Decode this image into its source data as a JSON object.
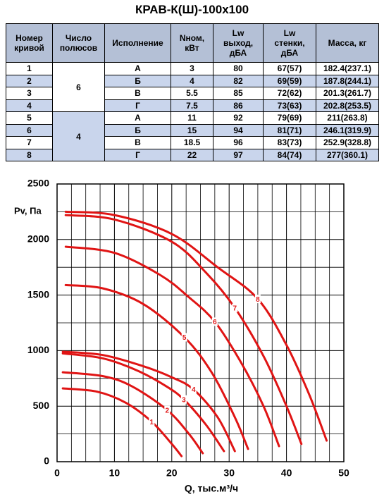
{
  "header": {
    "title": "КРАВ-К(Ш)-100х100"
  },
  "table": {
    "columns": [
      "Номер\nкривой",
      "Число\nполюсов",
      "Исполнение",
      "Nном,\nкВт",
      "Lw\nвыход,\nдБА",
      "Lw\nстенки,\nдБА",
      "Масса, кг"
    ],
    "poles": [
      "6",
      "4"
    ],
    "rows": [
      [
        "1",
        "А",
        "3",
        "80",
        "67(57)",
        "182.4(237.1)"
      ],
      [
        "2",
        "Б",
        "4",
        "82",
        "69(59)",
        "187.8(244.1)"
      ],
      [
        "3",
        "В",
        "5.5",
        "85",
        "72(62)",
        "201.3(261.7)"
      ],
      [
        "4",
        "Г",
        "7.5",
        "86",
        "73(63)",
        "202.8(253.5)"
      ],
      [
        "5",
        "А",
        "11",
        "92",
        "79(69)",
        "211(263.8)"
      ],
      [
        "6",
        "Б",
        "15",
        "94",
        "81(71)",
        "246.1(319.9)"
      ],
      [
        "7",
        "В",
        "18.5",
        "96",
        "83(73)",
        "252.9(328.8)"
      ],
      [
        "8",
        "Г",
        "22",
        "97",
        "84(74)",
        "277(360.1)"
      ]
    ]
  },
  "chart_data": {
    "type": "line",
    "xlabel": "Q, тыс.м³/ч",
    "ylabel": "Pv, Па",
    "xlim": [
      0,
      50
    ],
    "xticks": [
      0,
      10,
      20,
      30,
      40,
      50
    ],
    "ylim": [
      0,
      2500
    ],
    "yticks": [
      0,
      500,
      1000,
      1500,
      2000,
      2500
    ],
    "grid": true,
    "color": "#e01414",
    "series": [
      {
        "name": "1",
        "x": [
          1,
          7,
          12,
          16.5,
          20,
          21.7
        ],
        "values": [
          660,
          630,
          530,
          360,
          160,
          50
        ]
      },
      {
        "name": "2",
        "x": [
          1,
          8,
          13,
          19.2,
          23,
          25.4
        ],
        "values": [
          805,
          770,
          680,
          465,
          250,
          76
        ]
      },
      {
        "name": "3",
        "x": [
          1,
          8,
          14,
          19,
          22.1,
          26,
          29.1
        ],
        "values": [
          975,
          930,
          820,
          680,
          560,
          330,
          95
        ]
      },
      {
        "name": "4",
        "x": [
          1,
          8,
          15,
          20,
          23.8,
          28,
          31
        ],
        "values": [
          990,
          960,
          860,
          760,
          650,
          400,
          95
        ]
      },
      {
        "name": "5",
        "x": [
          1.5,
          8,
          15,
          22.2,
          27,
          31,
          33.3
        ],
        "values": [
          1590,
          1560,
          1420,
          1120,
          800,
          400,
          115
        ]
      },
      {
        "name": "6",
        "x": [
          1.5,
          10,
          18,
          23,
          27.5,
          32,
          36,
          38.7
        ],
        "values": [
          1935,
          1880,
          1680,
          1480,
          1260,
          900,
          500,
          140
        ]
      },
      {
        "name": "7",
        "x": [
          1.5,
          10,
          20,
          26,
          31,
          36,
          40,
          42.6
        ],
        "values": [
          2220,
          2180,
          1980,
          1700,
          1385,
          950,
          500,
          160
        ]
      },
      {
        "name": "8",
        "x": [
          1.5,
          10,
          20,
          28,
          35,
          40,
          44,
          47
        ],
        "values": [
          2250,
          2220,
          2050,
          1750,
          1465,
          1050,
          600,
          190
        ]
      }
    ]
  }
}
